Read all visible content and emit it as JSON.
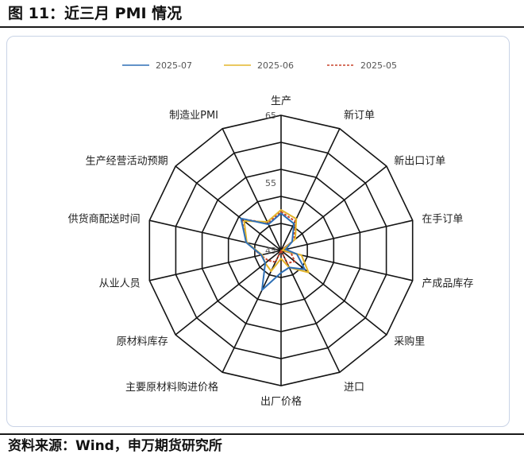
{
  "figure": {
    "title": "图 11：近三月 PMI 情况",
    "source": "资料来源：Wind，申万期货研究所"
  },
  "colors": {
    "grid": "#141414",
    "series_2025_07": "#2e6fb5",
    "series_2025_06": "#e3b52c",
    "series_2025_05": "#c9442b"
  },
  "chart_data": {
    "type": "radar",
    "title": "",
    "axes": [
      "生产",
      "新订单",
      "新出口订单",
      "在手订单",
      "产成品库存",
      "采购里",
      "进口",
      "出厂价格",
      "主要原材料购进价格",
      "原材料库存",
      "从业人员",
      "供货商配送时间",
      "生产经营活动预期",
      "制造业PMI"
    ],
    "range": [
      45,
      65
    ],
    "ticks": [
      45,
      55,
      65
    ],
    "grid": true,
    "legend_position": "top",
    "series": [
      {
        "name": "2025-07",
        "values": [
          50.5,
          49.4,
          47.1,
          45.7,
          47.4,
          49.5,
          47.8,
          48.3,
          51.5,
          48.0,
          48.0,
          50.3,
          52.6,
          49.3
        ]
      },
      {
        "name": "2025-06",
        "values": [
          51.0,
          50.2,
          47.7,
          45.2,
          48.1,
          50.2,
          47.8,
          46.2,
          48.4,
          48.0,
          47.9,
          50.2,
          52.0,
          49.7
        ]
      },
      {
        "name": "2025-05",
        "values": [
          50.7,
          49.8,
          47.5,
          44.9,
          46.5,
          47.6,
          47.1,
          44.7,
          46.9,
          47.4,
          48.1,
          50.2,
          52.5,
          49.5
        ]
      }
    ]
  }
}
